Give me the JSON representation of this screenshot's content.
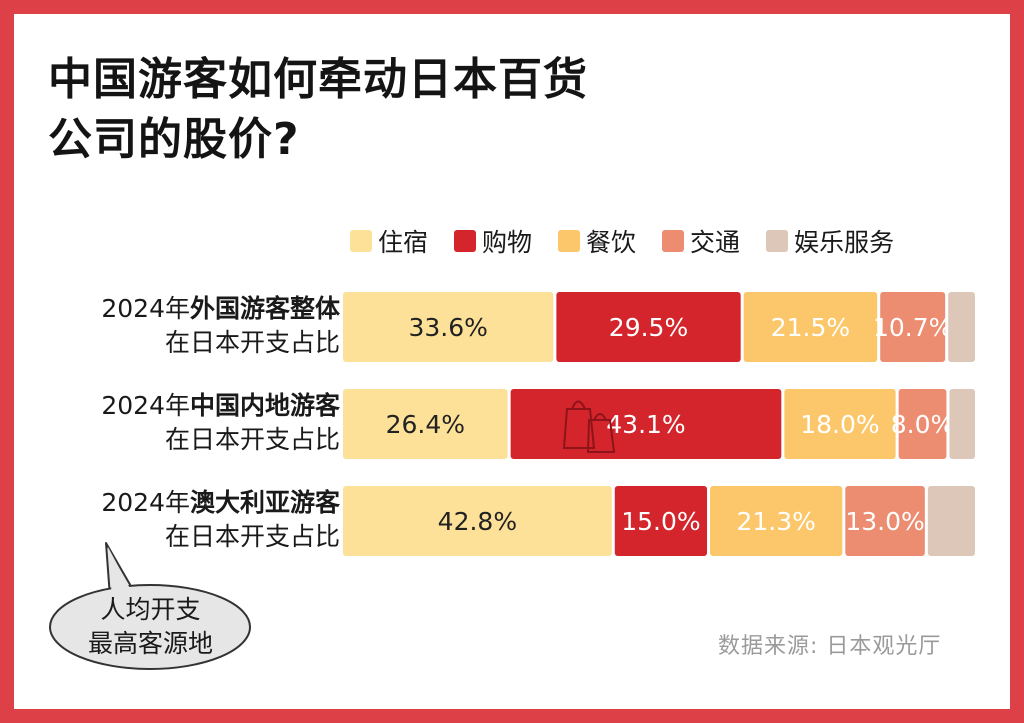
{
  "title_line1": "中国游客如何牵动日本百货",
  "title_line2": "公司的股价?",
  "source": "数据来源:  日本观光厅",
  "bubble": {
    "line1": "人均开支",
    "line2": "最高客源地"
  },
  "colors": {
    "住宿": "#fde198",
    "购物": "#d4252c",
    "餐饮": "#fcc76a",
    "交通": "#ec8c70",
    "娱乐服务": "#dcc7b9"
  },
  "chart_data": {
    "type": "bar",
    "orientation": "horizontal",
    "stacked": true,
    "legend": [
      "住宿",
      "购物",
      "餐饮",
      "交通",
      "娱乐服务"
    ],
    "categories": [
      {
        "prefix": "2024年",
        "name": "外国游客整体",
        "sub": "在日本开支占比"
      },
      {
        "prefix": "2024年",
        "name": "中国内地游客",
        "sub": "在日本开支占比"
      },
      {
        "prefix": "2024年",
        "name": "澳大利亚游客",
        "sub": "在日本开支占比"
      }
    ],
    "series": [
      {
        "name": "住宿",
        "values": [
          33.6,
          26.4,
          42.8
        ],
        "labels": [
          "33.6%",
          "26.4%",
          "42.8%"
        ]
      },
      {
        "name": "购物",
        "values": [
          29.5,
          43.1,
          15.0
        ],
        "labels": [
          "29.5%",
          "43.1%",
          "15.0%"
        ]
      },
      {
        "name": "餐饮",
        "values": [
          21.5,
          18.0,
          21.3
        ],
        "labels": [
          "21.5%",
          "18.0%",
          "21.3%"
        ]
      },
      {
        "name": "交通",
        "values": [
          10.7,
          8.0,
          13.0
        ],
        "labels": [
          "10.7%",
          "8.0%",
          "13.0%"
        ]
      },
      {
        "name": "娱乐服务",
        "values": [
          4.7,
          4.5,
          7.9
        ],
        "labels": [
          "",
          "",
          ""
        ]
      }
    ],
    "label_colors": [
      "#222222",
      "#ffffff",
      "#ffffff",
      "#ffffff",
      "#ffffff"
    ]
  }
}
